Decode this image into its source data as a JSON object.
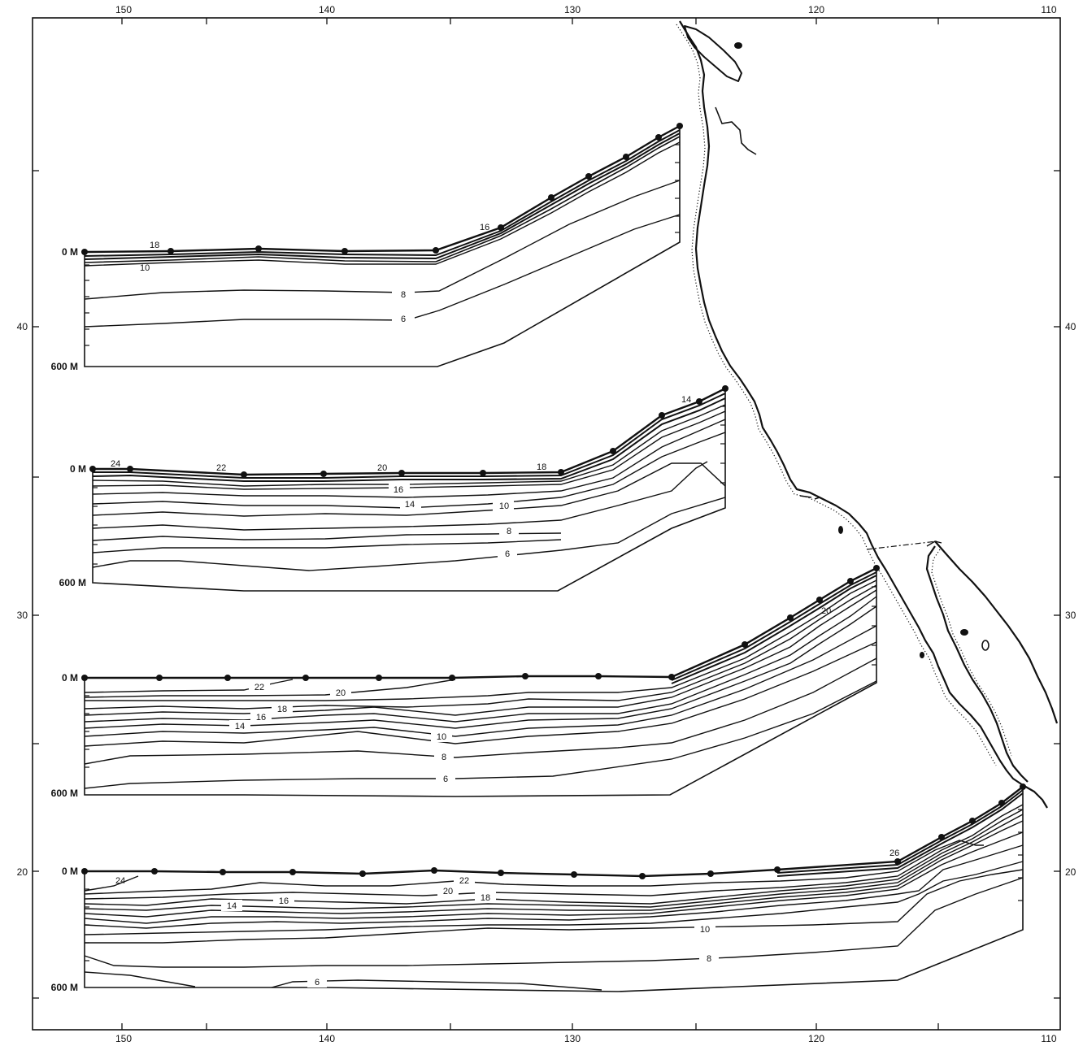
{
  "map": {
    "longitude_ticks": [
      "150",
      "140",
      "130",
      "120",
      "110"
    ],
    "latitude_ticks": [
      "40",
      "30",
      "20"
    ],
    "colors": {
      "ink": "#111111",
      "background": "#ffffff"
    }
  },
  "sections": [
    {
      "id": "section-1",
      "top_depth_label": "0 M",
      "bottom_depth_label": "600 M",
      "contour_labels": [
        "18",
        "10",
        "8",
        "6",
        "16"
      ]
    },
    {
      "id": "section-2",
      "top_depth_label": "0 M",
      "bottom_depth_label": "600 M",
      "contour_labels": [
        "24",
        "22",
        "20",
        "18",
        "16",
        "14",
        "10",
        "8",
        "6",
        "14"
      ]
    },
    {
      "id": "section-3",
      "top_depth_label": "0 M",
      "bottom_depth_label": "600 M",
      "contour_labels": [
        "22",
        "20",
        "18",
        "16",
        "14",
        "10",
        "8",
        "6",
        "20"
      ]
    },
    {
      "id": "section-4",
      "top_depth_label": "0 M",
      "bottom_depth_label": "600 M",
      "contour_labels": [
        "24",
        "22",
        "20",
        "18",
        "16",
        "14",
        "10",
        "8",
        "6",
        "26"
      ]
    }
  ]
}
